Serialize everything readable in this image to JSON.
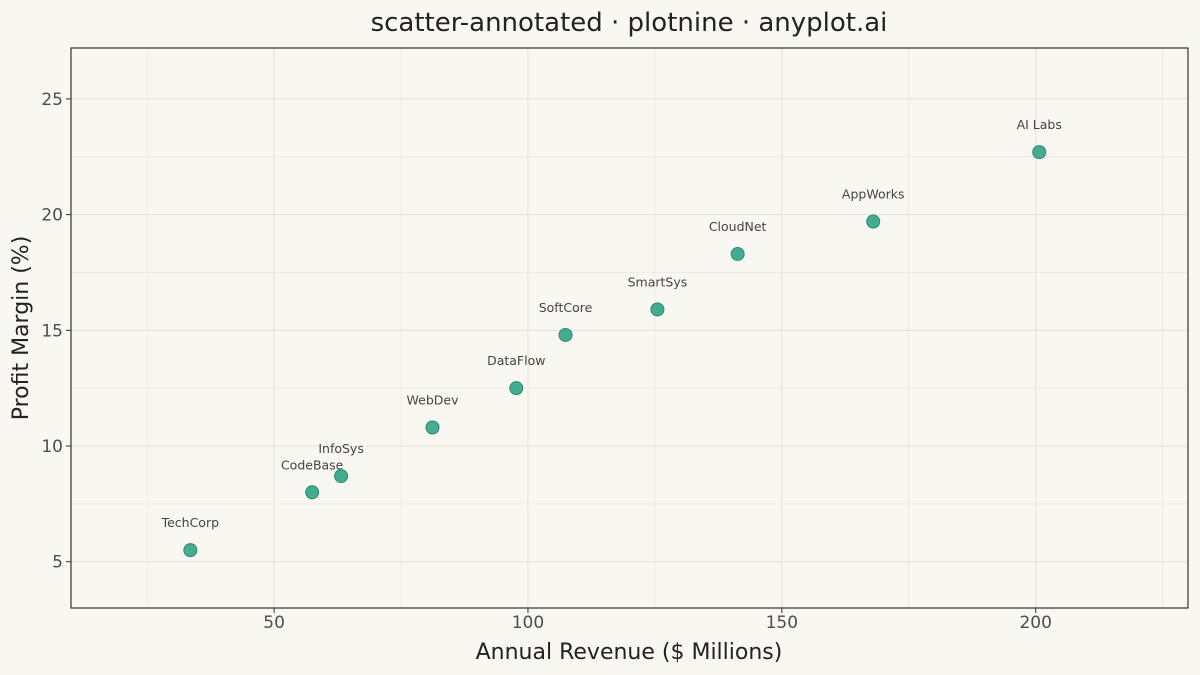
{
  "chart_data": {
    "type": "scatter",
    "title": "scatter-annotated · plotnine · anyplot.ai",
    "xlabel": "Annual Revenue ($ Millions)",
    "ylabel": "Profit Margin (%)",
    "xlim": [
      10,
      230
    ],
    "ylim": [
      3,
      27.2
    ],
    "xticks": [
      50,
      100,
      150,
      200
    ],
    "yticks": [
      5,
      10,
      15,
      20,
      25
    ],
    "grid": true,
    "legend": "none",
    "marker_color": "#3aa88a",
    "marker_edge_color": "#2b8a6f",
    "background_color": "#f9f7f1",
    "points": [
      {
        "label": "TechCorp",
        "x": 33.5,
        "y": 5.5
      },
      {
        "label": "CodeBase",
        "x": 57.5,
        "y": 8.0
      },
      {
        "label": "InfoSys",
        "x": 63.2,
        "y": 8.7
      },
      {
        "label": "WebDev",
        "x": 81.2,
        "y": 10.8
      },
      {
        "label": "DataFlow",
        "x": 97.7,
        "y": 12.5
      },
      {
        "label": "SoftCore",
        "x": 107.4,
        "y": 14.8
      },
      {
        "label": "SmartSys",
        "x": 125.5,
        "y": 15.9
      },
      {
        "label": "CloudNet",
        "x": 141.3,
        "y": 18.3
      },
      {
        "label": "AppWorks",
        "x": 168.0,
        "y": 19.7
      },
      {
        "label": "AI Labs",
        "x": 200.7,
        "y": 22.7
      }
    ]
  }
}
